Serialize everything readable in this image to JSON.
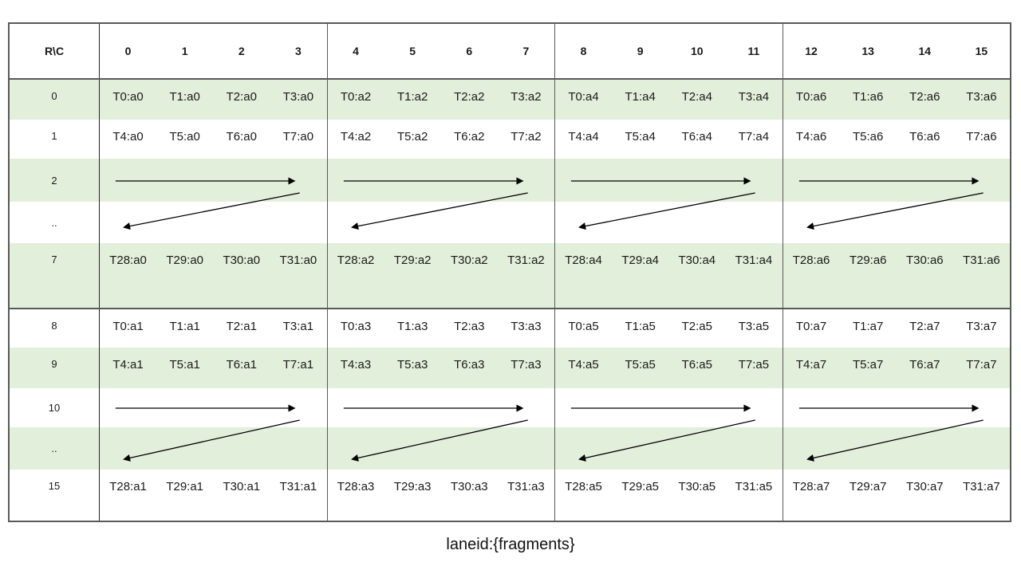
{
  "caption": "laneid:{fragments}",
  "colors": {
    "row_shade_green": "#e2efda",
    "grid_border": "#595959",
    "label_divider": "#262626",
    "text": "#1a1a1a",
    "arrow": "#000000"
  },
  "table": {
    "corner": "R\\C",
    "headers": [
      "0",
      "1",
      "2",
      "3",
      "4",
      "5",
      "6",
      "7",
      "8",
      "9",
      "10",
      "11",
      "12",
      "13",
      "14",
      "15"
    ],
    "rows": {
      "r0": {
        "label": "0",
        "cells": [
          "T0:a0",
          "T1:a0",
          "T2:a0",
          "T3:a0",
          "T0:a2",
          "T1:a2",
          "T2:a2",
          "T3:a2",
          "T0:a4",
          "T1:a4",
          "T2:a4",
          "T3:a4",
          "T0:a6",
          "T1:a6",
          "T2:a6",
          "T3:a6"
        ]
      },
      "r1": {
        "label": "1",
        "cells": [
          "T4:a0",
          "T5:a0",
          "T6:a0",
          "T7:a0",
          "T4:a2",
          "T5:a2",
          "T6:a2",
          "T7:a2",
          "T4:a4",
          "T5:a4",
          "T6:a4",
          "T7:a4",
          "T4:a6",
          "T5:a6",
          "T6:a6",
          "T7:a6"
        ]
      },
      "r7": {
        "label": "7",
        "cells": [
          "T28:a0",
          "T29:a0",
          "T30:a0",
          "T31:a0",
          "T28:a2",
          "T29:a2",
          "T30:a2",
          "T31:a2",
          "T28:a4",
          "T29:a4",
          "T30:a4",
          "T31:a4",
          "T28:a6",
          "T29:a6",
          "T30:a6",
          "T31:a6"
        ]
      },
      "r8": {
        "label": "8",
        "cells": [
          "T0:a1",
          "T1:a1",
          "T2:a1",
          "T3:a1",
          "T0:a3",
          "T1:a3",
          "T2:a3",
          "T3:a3",
          "T0:a5",
          "T1:a5",
          "T2:a5",
          "T3:a5",
          "T0:a7",
          "T1:a7",
          "T2:a7",
          "T3:a7"
        ]
      },
      "r9": {
        "label": "9",
        "cells": [
          "T4:a1",
          "T5:a1",
          "T6:a1",
          "T7:a1",
          "T4:a3",
          "T5:a3",
          "T6:a3",
          "T7:a3",
          "T4:a5",
          "T5:a5",
          "T6:a5",
          "T7:a5",
          "T4:a7",
          "T5:a7",
          "T6:a7",
          "T7:a7"
        ]
      },
      "r15": {
        "label": "15",
        "cells": [
          "T28:a1",
          "T29:a1",
          "T30:a1",
          "T31:a1",
          "T28:a3",
          "T29:a3",
          "T30:a3",
          "T31:a3",
          "T28:a5",
          "T29:a5",
          "T30:a5",
          "T31:a5",
          "T28:a7",
          "T29:a7",
          "T30:a7",
          "T31:a7"
        ]
      }
    },
    "arrow_sections": {
      "top": {
        "label_row": "2",
        "label_dots": "..",
        "pattern": "right-then-wrap-back-left"
      },
      "bottom": {
        "label_row": "10",
        "label_dots": "..",
        "pattern": "right-then-wrap-back-left"
      }
    }
  }
}
